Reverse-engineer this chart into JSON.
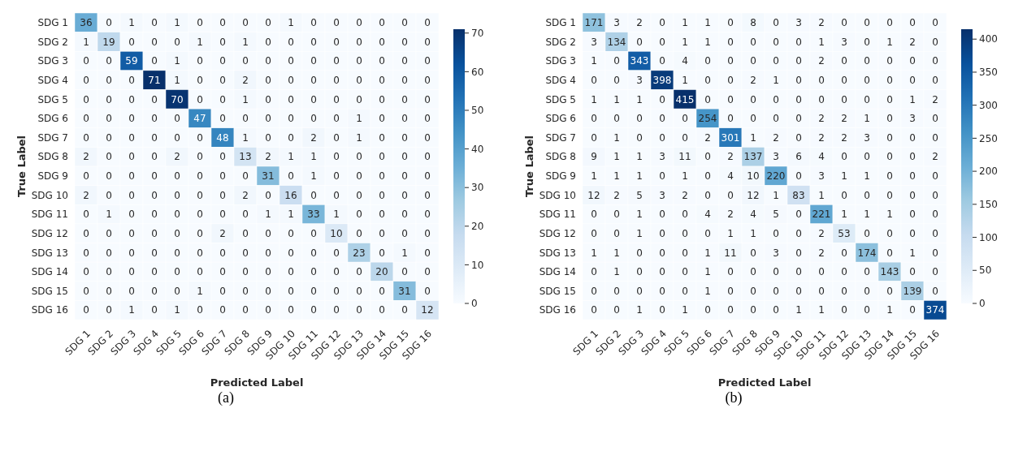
{
  "chart_data": [
    {
      "type": "heatmap",
      "xlabel": "Predicted Label",
      "ylabel": "True Label",
      "annotations": [
        "(a)"
      ],
      "data_labels": true,
      "categories": [
        "SDG 1",
        "SDG 2",
        "SDG 3",
        "SDG 4",
        "SDG 5",
        "SDG 6",
        "SDG 7",
        "SDG 8",
        "SDG 9",
        "SDG 10",
        "SDG 11",
        "SDG 12",
        "SDG 13",
        "SDG 14",
        "SDG 15",
        "SDG 16"
      ],
      "y_categories": [
        "SDG 1",
        "SDG 2",
        "SDG 3",
        "SDG 4",
        "SDG 5",
        "SDG 6",
        "SDG 7",
        "SDG 8",
        "SDG 9",
        "SDG 10",
        "SDG 11",
        "SDG 12",
        "SDG 13",
        "SDG 14",
        "SDG 15",
        "SDG 16"
      ],
      "clim": [
        0,
        71
      ],
      "cticks": [
        0,
        10,
        20,
        30,
        40,
        50,
        60,
        70
      ],
      "cells": [
        [
          36,
          0,
          1,
          0,
          1,
          0,
          0,
          0,
          0,
          1,
          0,
          0,
          0,
          0,
          0,
          0
        ],
        [
          1,
          19,
          0,
          0,
          0,
          1,
          0,
          1,
          0,
          0,
          0,
          0,
          0,
          0,
          0,
          0
        ],
        [
          0,
          0,
          59,
          0,
          1,
          0,
          0,
          0,
          0,
          0,
          0,
          0,
          0,
          0,
          0,
          0
        ],
        [
          0,
          0,
          0,
          71,
          1,
          0,
          0,
          2,
          0,
          0,
          0,
          0,
          0,
          0,
          0,
          0
        ],
        [
          0,
          0,
          0,
          0,
          70,
          0,
          0,
          1,
          0,
          0,
          0,
          0,
          0,
          0,
          0,
          0
        ],
        [
          0,
          0,
          0,
          0,
          0,
          47,
          0,
          0,
          0,
          0,
          0,
          0,
          1,
          0,
          0,
          0
        ],
        [
          0,
          0,
          0,
          0,
          0,
          0,
          48,
          1,
          0,
          0,
          2,
          0,
          1,
          0,
          0,
          0
        ],
        [
          2,
          0,
          0,
          0,
          2,
          0,
          0,
          13,
          2,
          1,
          1,
          0,
          0,
          0,
          0,
          0
        ],
        [
          0,
          0,
          0,
          0,
          0,
          0,
          0,
          0,
          31,
          0,
          1,
          0,
          0,
          0,
          0,
          0
        ],
        [
          2,
          0,
          0,
          0,
          0,
          0,
          0,
          2,
          0,
          16,
          0,
          0,
          0,
          0,
          0,
          0
        ],
        [
          0,
          1,
          0,
          0,
          0,
          0,
          0,
          0,
          1,
          1,
          33,
          1,
          0,
          0,
          0,
          0
        ],
        [
          0,
          0,
          0,
          0,
          0,
          0,
          2,
          0,
          0,
          0,
          0,
          10,
          0,
          0,
          0,
          0
        ],
        [
          0,
          0,
          0,
          0,
          0,
          0,
          0,
          0,
          0,
          0,
          0,
          0,
          23,
          0,
          1,
          0
        ],
        [
          0,
          0,
          0,
          0,
          0,
          0,
          0,
          0,
          0,
          0,
          0,
          0,
          0,
          20,
          0,
          0
        ],
        [
          0,
          0,
          0,
          0,
          0,
          1,
          0,
          0,
          0,
          0,
          0,
          0,
          0,
          0,
          31,
          0
        ],
        [
          0,
          0,
          1,
          0,
          1,
          0,
          0,
          0,
          0,
          0,
          0,
          0,
          0,
          0,
          0,
          12
        ]
      ]
    },
    {
      "type": "heatmap",
      "xlabel": "Predicted Label",
      "ylabel": "True Label",
      "annotations": [
        "(b)"
      ],
      "data_labels": true,
      "categories": [
        "SDG 1",
        "SDG 2",
        "SDG 3",
        "SDG 4",
        "SDG 5",
        "SDG 6",
        "SDG 7",
        "SDG 8",
        "SDG 9",
        "SDG 10",
        "SDG 11",
        "SDG 12",
        "SDG 13",
        "SDG 14",
        "SDG 15",
        "SDG 16"
      ],
      "y_categories": [
        "SDG 1",
        "SDG 2",
        "SDG 3",
        "SDG 4",
        "SDG 5",
        "SDG 6",
        "SDG 7",
        "SDG 8",
        "SDG 9",
        "SDG 10",
        "SDG 11",
        "SDG 12",
        "SDG 13",
        "SDG 14",
        "SDG 15",
        "SDG 16"
      ],
      "clim": [
        0,
        415
      ],
      "cticks": [
        0,
        50,
        100,
        150,
        200,
        250,
        300,
        350,
        400
      ],
      "cells": [
        [
          171,
          3,
          2,
          0,
          1,
          1,
          0,
          8,
          0,
          3,
          2,
          0,
          0,
          0,
          0,
          0
        ],
        [
          3,
          134,
          0,
          0,
          1,
          1,
          0,
          0,
          0,
          0,
          1,
          3,
          0,
          1,
          2,
          0
        ],
        [
          1,
          0,
          343,
          0,
          4,
          0,
          0,
          0,
          0,
          0,
          2,
          0,
          0,
          0,
          0,
          0
        ],
        [
          0,
          0,
          3,
          398,
          1,
          0,
          0,
          2,
          1,
          0,
          0,
          0,
          0,
          0,
          0,
          0
        ],
        [
          1,
          1,
          1,
          0,
          415,
          0,
          0,
          0,
          0,
          0,
          0,
          0,
          0,
          0,
          1,
          2
        ],
        [
          0,
          0,
          0,
          0,
          0,
          254,
          0,
          0,
          0,
          0,
          2,
          2,
          1,
          0,
          3,
          0
        ],
        [
          0,
          1,
          0,
          0,
          0,
          2,
          301,
          1,
          2,
          0,
          2,
          2,
          3,
          0,
          0,
          0
        ],
        [
          9,
          1,
          1,
          3,
          11,
          0,
          2,
          137,
          3,
          6,
          4,
          0,
          0,
          0,
          0,
          2
        ],
        [
          1,
          1,
          1,
          0,
          1,
          0,
          4,
          10,
          220,
          0,
          3,
          1,
          1,
          0,
          0,
          0
        ],
        [
          12,
          2,
          5,
          3,
          2,
          0,
          0,
          12,
          1,
          83,
          1,
          0,
          0,
          0,
          0,
          0
        ],
        [
          0,
          0,
          1,
          0,
          0,
          4,
          2,
          4,
          5,
          0,
          221,
          1,
          1,
          1,
          0,
          0
        ],
        [
          0,
          0,
          1,
          0,
          0,
          0,
          1,
          1,
          0,
          0,
          2,
          53,
          0,
          0,
          0,
          0
        ],
        [
          1,
          1,
          0,
          0,
          0,
          1,
          11,
          0,
          3,
          0,
          2,
          0,
          174,
          0,
          1,
          0
        ],
        [
          0,
          1,
          0,
          0,
          0,
          1,
          0,
          0,
          0,
          0,
          0,
          0,
          0,
          143,
          0,
          0
        ],
        [
          0,
          0,
          0,
          0,
          0,
          1,
          0,
          0,
          0,
          0,
          0,
          0,
          0,
          0,
          139,
          0
        ],
        [
          0,
          0,
          1,
          0,
          1,
          0,
          0,
          0,
          0,
          1,
          1,
          0,
          0,
          1,
          0,
          374
        ]
      ]
    }
  ]
}
